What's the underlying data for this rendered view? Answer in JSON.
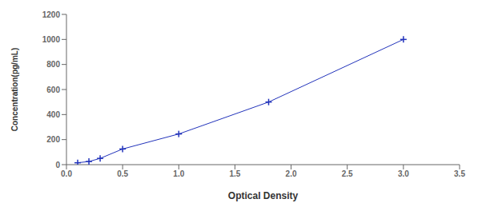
{
  "chart_data": {
    "type": "line",
    "x": [
      0.1,
      0.2,
      0.3,
      0.5,
      1.0,
      1.8,
      3.0
    ],
    "values": [
      15,
      25,
      50,
      125,
      245,
      500,
      1000
    ],
    "color": "#2233bb",
    "marker": "+",
    "xlabel": "Optical Density",
    "ylabel": "Concentration(pg/mL)",
    "xlim": [
      0,
      3.5
    ],
    "ylim": [
      0,
      1200
    ],
    "xticks": [
      {
        "value": 0,
        "label": "0.0"
      },
      0.5,
      {
        "value": 1.0,
        "label": "1.0"
      },
      1.5,
      {
        "value": 2.0,
        "label": "2.0"
      },
      2.5,
      {
        "value": 3.0,
        "label": "3.0"
      },
      3.5
    ],
    "yticks": [
      0,
      200,
      400,
      600,
      800,
      1000,
      1200
    ],
    "grid": false
  }
}
